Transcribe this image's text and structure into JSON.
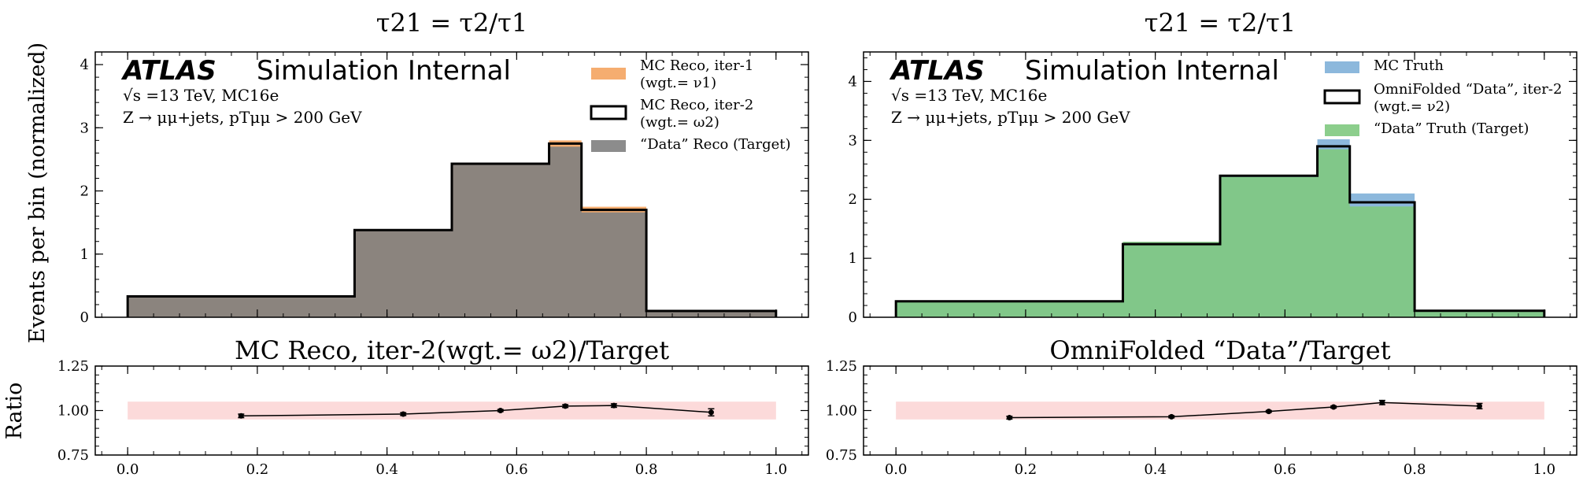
{
  "figure": {
    "ylabel_main": "Events per bin (normalized)",
    "ylabel_ratio": "Ratio"
  },
  "chart_data": [
    {
      "type": "bar",
      "panel": "left-main",
      "title": "τ21 = τ2/τ1",
      "atlas_label": "ATLAS",
      "atlas_sub": "Simulation Internal",
      "energy_text": "√s =13 TeV, MC16e",
      "selection_text": "Z → μμ+jets, pTμμ > 200 GeV",
      "xlim": [
        -0.05,
        1.05
      ],
      "ylim": [
        0,
        4.2
      ],
      "yticks": [
        "0",
        "1",
        "2",
        "3",
        "4"
      ],
      "grid": false,
      "legend_position": "top-right",
      "bin_edges": [
        0.0,
        0.35,
        0.5,
        0.65,
        0.7,
        0.8,
        1.0
      ],
      "series": [
        {
          "name": "MC Reco, iter-1",
          "name2": "(wgt.= ν1)",
          "style": "fill",
          "color": "#f4a460",
          "values": [
            0.32,
            1.38,
            2.43,
            2.8,
            1.75,
            0.1
          ]
        },
        {
          "name": "MC Reco, iter-2",
          "name2": "(wgt.= ω2)",
          "style": "step",
          "color": "#000000",
          "values": [
            0.33,
            1.38,
            2.43,
            2.75,
            1.7,
            0.1
          ]
        },
        {
          "name": "“Data” Reco (Target)",
          "name2": "",
          "style": "fill",
          "color": "#7f7f7f",
          "values": [
            0.33,
            1.37,
            2.42,
            2.7,
            1.66,
            0.1
          ]
        }
      ]
    },
    {
      "type": "bar",
      "panel": "right-main",
      "title": "τ21 = τ2/τ1",
      "atlas_label": "ATLAS",
      "atlas_sub": "Simulation Internal",
      "energy_text": "√s =13 TeV, MC16e",
      "selection_text": "Z → μμ+jets, pTμμ > 200 GeV",
      "xlim": [
        -0.05,
        1.05
      ],
      "ylim": [
        0,
        4.5
      ],
      "yticks": [
        "0",
        "1",
        "2",
        "3",
        "4"
      ],
      "grid": false,
      "legend_position": "top-right",
      "bin_edges": [
        0.0,
        0.35,
        0.5,
        0.65,
        0.7,
        0.8,
        1.0
      ],
      "series": [
        {
          "name": "MC Truth",
          "name2": "",
          "style": "fill",
          "color": "#7fb0d8",
          "values": [
            0.27,
            1.26,
            2.4,
            3.02,
            2.1,
            0.11
          ]
        },
        {
          "name": "OmniFolded “Data”, iter-2",
          "name2": "(wgt.= ν2)",
          "style": "step",
          "color": "#000000",
          "values": [
            0.27,
            1.24,
            2.4,
            2.9,
            1.95,
            0.11
          ]
        },
        {
          "name": "“Data” Truth (Target)",
          "name2": "",
          "style": "fill",
          "color": "#7fc97f",
          "values": [
            0.27,
            1.28,
            2.38,
            2.85,
            1.88,
            0.11
          ]
        }
      ]
    },
    {
      "type": "line",
      "panel": "left-ratio",
      "title": "MC Reco, iter-2(wgt.= ω2)/Target",
      "xlim": [
        -0.05,
        1.05
      ],
      "ylim": [
        0.75,
        1.25
      ],
      "xticks": [
        "0.0",
        "0.2",
        "0.4",
        "0.6",
        "0.8",
        "1.0"
      ],
      "yticks": [
        "0.75",
        "1.00",
        "1.25"
      ],
      "band": [
        0.95,
        1.05
      ],
      "x": [
        0.175,
        0.425,
        0.575,
        0.675,
        0.75,
        0.9
      ],
      "y": [
        0.97,
        0.98,
        1.0,
        1.025,
        1.028,
        0.99
      ],
      "yerr": [
        0.01,
        0.008,
        0.006,
        0.008,
        0.01,
        0.02
      ]
    },
    {
      "type": "line",
      "panel": "right-ratio",
      "title": "OmniFolded “Data”/Target",
      "xlim": [
        -0.05,
        1.05
      ],
      "ylim": [
        0.75,
        1.25
      ],
      "xticks": [
        "0.0",
        "0.2",
        "0.4",
        "0.6",
        "0.8",
        "1.0"
      ],
      "yticks": [
        "0.75",
        "1.00",
        "1.25"
      ],
      "band": [
        0.95,
        1.05
      ],
      "x": [
        0.175,
        0.425,
        0.575,
        0.675,
        0.75,
        0.9
      ],
      "y": [
        0.96,
        0.965,
        0.995,
        1.02,
        1.045,
        1.025
      ],
      "yerr": [
        0.008,
        0.006,
        0.005,
        0.006,
        0.012,
        0.015
      ]
    }
  ]
}
